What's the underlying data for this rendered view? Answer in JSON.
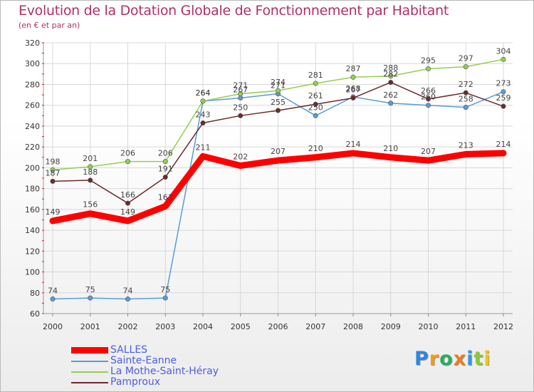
{
  "title": "Evolution de la Dotation Globale de Fonctionnement par Habitant",
  "subtitle": "(en € et par an)",
  "logo": {
    "letters": [
      "P",
      "r",
      "o",
      "x",
      "i",
      "t",
      "i"
    ],
    "colors": [
      "#2e86de",
      "#f39c12",
      "#27ae60",
      "#e67e22",
      "#3498db",
      "#8cc63f",
      "#f1c40f"
    ]
  },
  "chart_data": {
    "type": "line",
    "title": "Evolution de la Dotation Globale de Fonctionnement par Habitant",
    "subtitle": "(en € et par an)",
    "xlabel": "",
    "ylabel": "",
    "x": [
      "2000",
      "2001",
      "2002",
      "2003",
      "2004",
      "2005",
      "2006",
      "2007",
      "2008",
      "2009",
      "2010",
      "2011",
      "2012"
    ],
    "ylim": [
      60,
      320
    ],
    "yticks": [
      60,
      80,
      100,
      120,
      140,
      160,
      180,
      200,
      220,
      240,
      260,
      280,
      300,
      320
    ],
    "grid": true,
    "legend_position": "bottom-left",
    "series": [
      {
        "name": "SALLES",
        "color": "#ff0000",
        "values": [
          149,
          156,
          149,
          163,
          211,
          202,
          207,
          210,
          214,
          210,
          207,
          213,
          214
        ]
      },
      {
        "name": "Sainte-Eanne",
        "color": "#5b9bd5",
        "values": [
          74,
          75,
          74,
          75,
          264,
          267,
          271,
          250,
          268,
          262,
          260,
          258,
          273
        ]
      },
      {
        "name": "La Mothe-Saint-Héray",
        "color": "#92d050",
        "values": [
          198,
          201,
          206,
          206,
          264,
          271,
          274,
          281,
          287,
          288,
          295,
          297,
          304
        ]
      },
      {
        "name": "Pamproux",
        "color": "#6b2a2a",
        "values": [
          187,
          188,
          166,
          191,
          243,
          250,
          255,
          261,
          267,
          282,
          266,
          272,
          259
        ]
      }
    ]
  }
}
